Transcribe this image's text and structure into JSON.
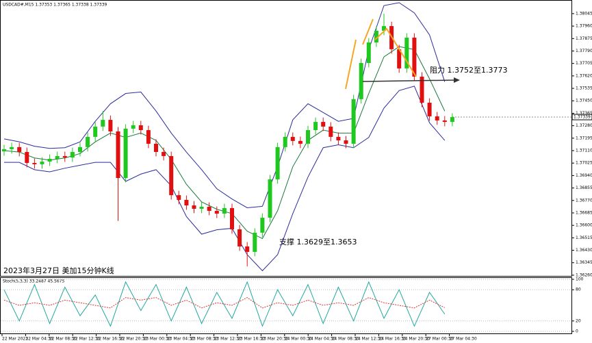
{
  "chart_data": [
    {
      "type": "candlestick",
      "header": "USDCAD#,M15  1.37353 1.37365 1.37338 1.37339",
      "caption": "2023年3月27日 美加15分钟K线",
      "annotations": [
        "阻力 1.3752至1.3773",
        "支撑 1.3629至1.3653"
      ],
      "x_labels": [
        "22 Mar 2023",
        "22 Mar 04:30",
        "22 Mar 08:30",
        "22 Mar 12:30",
        "22 Mar 16:30",
        "22 Mar 20:30",
        "23 Mar 00:30",
        "23 Mar 04:30",
        "23 Mar 08:30",
        "23 Mar 12:30",
        "23 Mar 16:30",
        "23 Mar 20:30",
        "24 Mar 00:30",
        "24 Mar 04:30",
        "24 Mar 08:30",
        "24 Mar 12:30",
        "24 Mar 16:30",
        "24 Mar 20:30",
        "27 Mar 00:30",
        "27 Mar 04:30"
      ],
      "open": [
        1.37105,
        1.3712,
        1.37134,
        1.37101,
        1.37026,
        1.37017,
        1.37035,
        1.37054,
        1.37073,
        1.37063,
        1.37101,
        1.37134,
        1.37204,
        1.37274,
        1.3732,
        1.37241,
        1.36923,
        1.3726,
        1.37283,
        1.3725,
        1.37157,
        1.37101,
        1.37073,
        1.36806,
        1.36774,
        1.36736,
        1.36713,
        1.36727,
        1.36699,
        1.3668,
        1.36718,
        1.36573,
        1.36456,
        1.36419,
        1.3655,
        1.36652,
        1.36914,
        1.37134,
        1.37204,
        1.37176,
        1.37157,
        1.3725,
        1.37306,
        1.37274,
        1.37204,
        1.3718,
        1.37157,
        1.37461,
        1.37708,
        1.37848,
        1.37928,
        1.3796,
        1.37802,
        1.37671,
        1.37881,
        1.37615,
        1.37437,
        1.37344,
        1.37316,
        1.37306
      ],
      "high": [
        1.3715,
        1.37164,
        1.37164,
        1.37131,
        1.37056,
        1.37065,
        1.37084,
        1.37103,
        1.37103,
        1.37131,
        1.37164,
        1.37234,
        1.37304,
        1.3738,
        1.3735,
        1.37271,
        1.3729,
        1.37313,
        1.37313,
        1.3728,
        1.37187,
        1.37131,
        1.37103,
        1.36836,
        1.36804,
        1.36766,
        1.36757,
        1.36757,
        1.36729,
        1.36748,
        1.36748,
        1.36603,
        1.36486,
        1.3658,
        1.36682,
        1.36944,
        1.37164,
        1.37234,
        1.37234,
        1.37206,
        1.3728,
        1.37336,
        1.37336,
        1.37304,
        1.37234,
        1.3721,
        1.37491,
        1.37738,
        1.37878,
        1.37958,
        1.38045,
        1.3799,
        1.37832,
        1.37911,
        1.37911,
        1.37645,
        1.37467,
        1.37374,
        1.37346,
        1.37365
      ],
      "low": [
        1.37075,
        1.3709,
        1.37071,
        1.36996,
        1.36987,
        1.36987,
        1.37005,
        1.37024,
        1.37033,
        1.37033,
        1.37071,
        1.37104,
        1.37174,
        1.37244,
        1.37211,
        1.3663,
        1.36893,
        1.3723,
        1.3722,
        1.37127,
        1.37071,
        1.37043,
        1.36776,
        1.36744,
        1.36706,
        1.36683,
        1.36683,
        1.36669,
        1.3665,
        1.3665,
        1.36543,
        1.36426,
        1.3632,
        1.36389,
        1.3652,
        1.36622,
        1.36884,
        1.37104,
        1.37146,
        1.37127,
        1.37127,
        1.3722,
        1.37244,
        1.37174,
        1.3715,
        1.37127,
        1.37127,
        1.37431,
        1.37678,
        1.37818,
        1.37898,
        1.37772,
        1.37641,
        1.37641,
        1.37585,
        1.37407,
        1.37314,
        1.37286,
        1.37276,
        1.37276
      ],
      "close": [
        1.3712,
        1.37134,
        1.37101,
        1.37026,
        1.37017,
        1.37035,
        1.37054,
        1.37073,
        1.37063,
        1.37101,
        1.37134,
        1.37204,
        1.37274,
        1.3732,
        1.37241,
        1.36923,
        1.3726,
        1.37283,
        1.3725,
        1.37157,
        1.37101,
        1.37073,
        1.36806,
        1.36774,
        1.36736,
        1.36713,
        1.36727,
        1.36699,
        1.3668,
        1.36718,
        1.36573,
        1.36456,
        1.36419,
        1.3655,
        1.36652,
        1.36914,
        1.37134,
        1.37204,
        1.37176,
        1.37157,
        1.3725,
        1.37306,
        1.37274,
        1.37204,
        1.3718,
        1.37157,
        1.37461,
        1.37708,
        1.37848,
        1.37928,
        1.3796,
        1.37802,
        1.37671,
        1.37881,
        1.37615,
        1.37437,
        1.37344,
        1.37316,
        1.37306,
        1.37339
      ],
      "up_color": "#1fc81f",
      "down_color": "#e01010",
      "bands": {
        "color": "#2b2b9e",
        "middle_color": "#1a7a3a",
        "upper": [
          1.3719,
          1.3717,
          1.3714,
          1.37125,
          1.3713,
          1.3717,
          1.3731,
          1.3743,
          1.375,
          1.3751,
          1.3738,
          1.3723,
          1.371,
          1.3698,
          1.3685,
          1.3678,
          1.3672,
          1.3673,
          1.37,
          1.3732,
          1.3743,
          1.3737,
          1.3731,
          1.3733,
          1.378,
          1.381,
          1.3812,
          1.3805,
          1.379,
          1.3758
        ],
        "middle": [
          1.3711,
          1.371,
          1.3706,
          1.37045,
          1.3706,
          1.3709,
          1.3717,
          1.3723,
          1.372,
          1.3723,
          1.3718,
          1.3705,
          1.3688,
          1.3676,
          1.3671,
          1.3668,
          1.3656,
          1.3651,
          1.367,
          1.37,
          1.3718,
          1.3725,
          1.3723,
          1.3723,
          1.375,
          1.3775,
          1.3782,
          1.378,
          1.376,
          1.3738
        ],
        "lower": [
          1.3703,
          1.3703,
          1.3698,
          1.36965,
          1.3699,
          1.3701,
          1.3703,
          1.3703,
          1.369,
          1.3695,
          1.3698,
          1.3687,
          1.3666,
          1.3654,
          1.3657,
          1.3658,
          1.364,
          1.3629,
          1.364,
          1.3668,
          1.3693,
          1.3713,
          1.3715,
          1.3713,
          1.372,
          1.374,
          1.3752,
          1.3755,
          1.373,
          1.3718
        ]
      },
      "ylim": [
        1.36255,
        1.38138
      ],
      "yticks": [
        {
          "value": 1.38045,
          "label": "1.38045"
        },
        {
          "value": 1.3796,
          "label": "1.37960"
        },
        {
          "value": 1.37875,
          "label": "1.37875"
        },
        {
          "value": 1.3779,
          "label": "1.37790"
        },
        {
          "value": 1.37705,
          "label": "1.37705"
        },
        {
          "value": 1.3762,
          "label": "1.37620"
        },
        {
          "value": 1.37535,
          "label": "1.37535"
        },
        {
          "value": 1.3745,
          "label": "1.37450"
        },
        {
          "value": 1.37365,
          "label": "1.37365"
        },
        {
          "value": 1.3728,
          "label": "1.37280"
        },
        {
          "value": 1.37195,
          "label": "1.37195"
        },
        {
          "value": 1.3711,
          "label": "1.37110"
        },
        {
          "value": 1.37025,
          "label": "1.37025"
        },
        {
          "value": 1.3694,
          "label": "1.36940"
        },
        {
          "value": 1.36855,
          "label": "1.36855"
        },
        {
          "value": 1.3677,
          "label": "1.36770"
        },
        {
          "value": 1.36685,
          "label": "1.36685"
        },
        {
          "value": 1.366,
          "label": "1.36600"
        },
        {
          "value": 1.36515,
          "label": "1.36515"
        },
        {
          "value": 1.3643,
          "label": "1.36430"
        },
        {
          "value": 1.36345,
          "label": "1.36345"
        },
        {
          "value": 1.3626,
          "label": "1.36260"
        }
      ]
    },
    {
      "type": "line",
      "title": "Stoch(5,3,3) 33.2487 45.5675",
      "series": [
        {
          "name": "Main",
          "color": "#20a8a0",
          "values": [
            80,
            20,
            90,
            15,
            85,
            30,
            70,
            10,
            95,
            40,
            90,
            20,
            85,
            15,
            75,
            25,
            95,
            10,
            80,
            30,
            90,
            15,
            85,
            20,
            95,
            25,
            80,
            10,
            75,
            33.2487
          ]
        },
        {
          "name": "Signal",
          "color": "#e03030",
          "values": [
            60,
            50,
            55,
            50,
            60,
            55,
            50,
            45,
            65,
            60,
            65,
            50,
            60,
            45,
            55,
            50,
            65,
            45,
            55,
            50,
            60,
            50,
            55,
            50,
            65,
            55,
            50,
            45,
            60,
            45.5675
          ]
        }
      ],
      "ylim": [
        0,
        100
      ],
      "yticks": [
        100,
        80,
        20,
        0
      ]
    }
  ]
}
